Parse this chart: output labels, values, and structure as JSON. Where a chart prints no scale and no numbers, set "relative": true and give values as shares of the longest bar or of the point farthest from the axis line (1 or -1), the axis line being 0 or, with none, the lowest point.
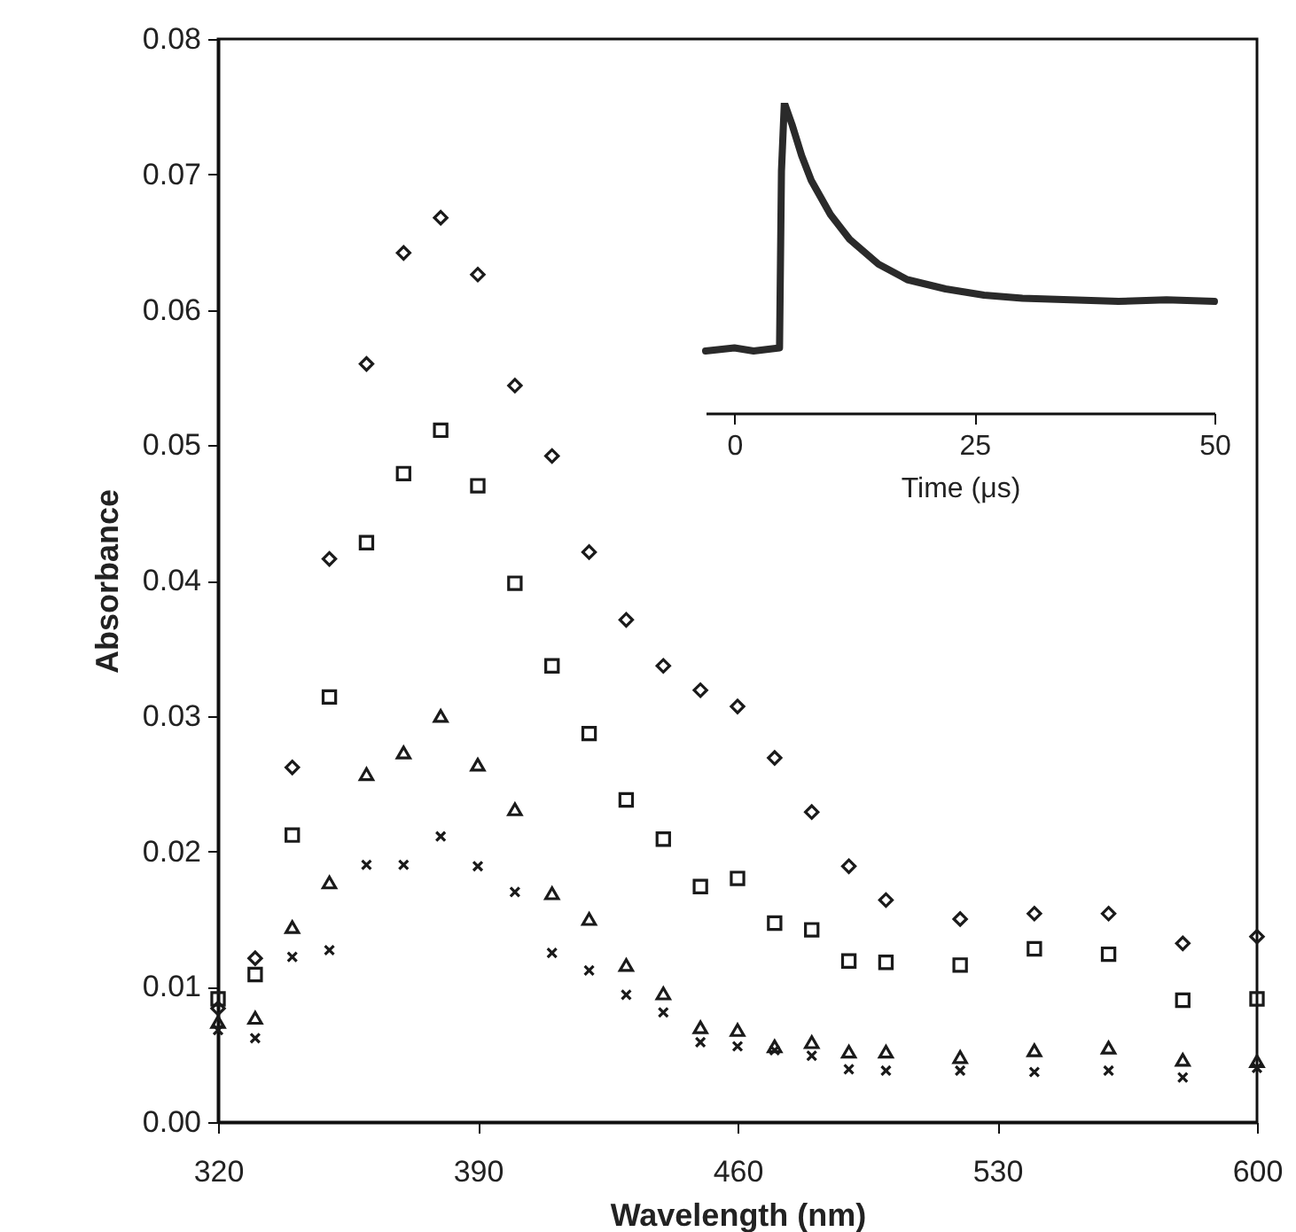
{
  "chart_data": [
    {
      "type": "scatter",
      "xlabel": "Wavelength (nm)",
      "ylabel": "Absorbance",
      "x": [
        320,
        330,
        340,
        350,
        360,
        370,
        380,
        390,
        400,
        410,
        420,
        430,
        440,
        450,
        460,
        470,
        480,
        490,
        500,
        520,
        540,
        560,
        580,
        600
      ],
      "series": [
        {
          "color": "#1a1a1a",
          "marker": "diamond",
          "values": [
            0.0084,
            0.0121,
            0.0262,
            0.0416,
            0.056,
            0.0642,
            0.0668,
            0.0626,
            0.0544,
            0.0492,
            0.0421,
            0.0371,
            0.0337,
            0.0319,
            0.0307,
            0.0269,
            0.0229,
            0.0189,
            0.0164,
            0.015,
            0.0154,
            0.0154,
            0.0132,
            0.0137
          ]
        },
        {
          "color": "#1a1a1a",
          "marker": "square",
          "values": [
            0.0091,
            0.0109,
            0.0212,
            0.0314,
            0.0428,
            0.0479,
            0.0511,
            0.047,
            0.0398,
            0.0337,
            0.0287,
            0.0238,
            0.0209,
            0.0174,
            0.018,
            0.0147,
            0.0142,
            0.0119,
            0.0118,
            0.0116,
            0.0128,
            0.0124,
            0.009,
            0.0091
          ]
        },
        {
          "color": "#1a1a1a",
          "marker": "triangle",
          "values": [
            0.0074,
            0.0077,
            0.0144,
            0.0177,
            0.0257,
            0.0273,
            0.03,
            0.0264,
            0.0231,
            0.0169,
            0.015,
            0.0116,
            0.0095,
            0.007,
            0.0068,
            0.0056,
            0.0059,
            0.0052,
            0.0052,
            0.0048,
            0.0053,
            0.0055,
            0.0046,
            0.0045
          ]
        },
        {
          "color": "#1a1a1a",
          "marker": "cross",
          "values": [
            0.0068,
            0.0062,
            0.0122,
            0.0127,
            0.019,
            0.019,
            0.0211,
            0.0189,
            0.017,
            0.0125,
            0.0112,
            0.0094,
            0.0081,
            0.0059,
            0.0056,
            0.0053,
            0.0049,
            0.0039,
            0.0038,
            0.0038,
            0.0037,
            0.0038,
            0.0033,
            0.004
          ]
        }
      ],
      "xlim": [
        320,
        600
      ],
      "xticks": [
        320,
        390,
        460,
        530,
        600
      ],
      "ylim": [
        0,
        0.08
      ],
      "yticks": [
        {
          "value": 0,
          "label": "0.00"
        },
        {
          "value": 0.01,
          "label": "0.01"
        },
        {
          "value": 0.02,
          "label": "0.02"
        },
        {
          "value": 0.03,
          "label": "0.03"
        },
        {
          "value": 0.04,
          "label": "0.04"
        },
        {
          "value": 0.05,
          "label": "0.05"
        },
        {
          "value": 0.06,
          "label": "0.06"
        },
        {
          "value": 0.07,
          "label": "0.07"
        },
        {
          "value": 0.08,
          "label": "0.08"
        }
      ]
    },
    {
      "type": "line",
      "relative": true,
      "xlabel": "Time (μs)",
      "tick_labels": "x",
      "x": [
        -3,
        0,
        2,
        4.7,
        4.9,
        5.2,
        6,
        7,
        8,
        10,
        12,
        15,
        18,
        22,
        26,
        30,
        35,
        40,
        45,
        50
      ],
      "series": [
        {
          "color": "#2a2a2a",
          "values": [
            0.2,
            0.21,
            0.2,
            0.21,
            0.78,
            1.0,
            0.93,
            0.83,
            0.75,
            0.64,
            0.56,
            0.48,
            0.43,
            0.4,
            0.38,
            0.37,
            0.365,
            0.36,
            0.365,
            0.36
          ]
        }
      ],
      "xlim": [
        -3,
        50
      ],
      "xticks": [
        0,
        25,
        50
      ]
    }
  ]
}
